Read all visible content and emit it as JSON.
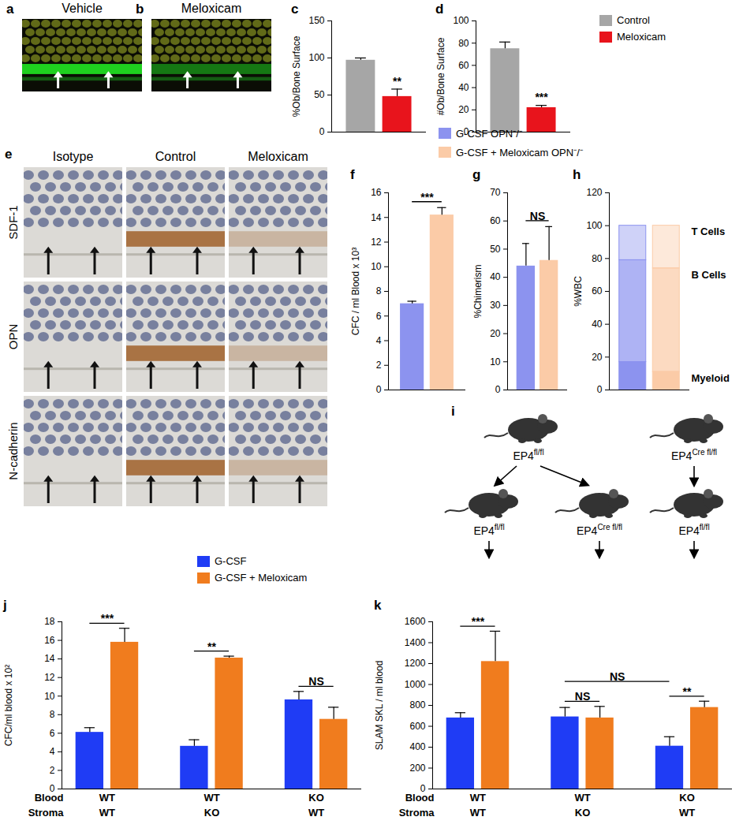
{
  "chart_data": [
    {
      "panel": "c",
      "type": "bar",
      "ylabel": "%Ob/Bone Surface",
      "categories": [
        null
      ],
      "ylim": [
        0,
        150
      ],
      "yticks": [
        0,
        50,
        100,
        150
      ],
      "tick_labels": "y",
      "series": [
        {
          "name": "Control",
          "color": "#a6a6a6",
          "values": [
            97
          ],
          "errors": [
            3
          ]
        },
        {
          "name": "Meloxicam",
          "color": "#e8141c",
          "values": [
            48
          ],
          "errors": [
            10
          ]
        }
      ],
      "annotations": [
        {
          "text": "**",
          "bars": [
            [
              0,
              1
            ]
          ]
        }
      ]
    },
    {
      "panel": "d",
      "type": "bar",
      "ylabel": "#Ob/Bone Surface",
      "categories": [
        null
      ],
      "ylim": [
        0,
        100
      ],
      "yticks": [
        0,
        20,
        40,
        60,
        80,
        100
      ],
      "tick_labels": "y",
      "legend": "right",
      "series": [
        {
          "name": "Control",
          "color": "#a6a6a6",
          "values": [
            75
          ],
          "errors": [
            6
          ]
        },
        {
          "name": "Meloxicam",
          "color": "#e8141c",
          "values": [
            22
          ],
          "errors": [
            2
          ]
        }
      ],
      "annotations": [
        {
          "text": "***",
          "bars": [
            [
              0,
              1
            ]
          ]
        }
      ]
    },
    {
      "panel": "f",
      "type": "bar",
      "ylabel": "CFC / ml Blood x 10³",
      "categories": [
        null
      ],
      "ylim": [
        0,
        16
      ],
      "yticks": [
        0,
        2,
        4,
        6,
        8,
        10,
        12,
        14,
        16
      ],
      "tick_labels": "y",
      "legend": "top",
      "series": [
        {
          "name": "G-CSF OPN⁻/⁻",
          "color": "#8c93ef",
          "values": [
            7.0
          ],
          "errors": [
            0.2
          ]
        },
        {
          "name": "G-CSF + Meloxicam OPN⁻/⁻",
          "color": "#fbcba7",
          "values": [
            14.2
          ],
          "errors": [
            0.6
          ]
        }
      ],
      "annotations": [
        {
          "text": "***",
          "bars": [
            [
              0,
              0
            ],
            [
              0,
              1
            ]
          ]
        }
      ]
    },
    {
      "panel": "g",
      "type": "bar",
      "ylabel": "%Chimerism",
      "categories": [
        null
      ],
      "ylim": [
        0,
        70
      ],
      "yticks": [
        0,
        10,
        20,
        30,
        40,
        50,
        60,
        70
      ],
      "tick_labels": "y",
      "series": [
        {
          "name": "G-CSF OPN⁻/⁻",
          "color": "#8c93ef",
          "values": [
            44
          ],
          "errors": [
            8
          ]
        },
        {
          "name": "G-CSF + Meloxicam OPN⁻/⁻",
          "color": "#fbcba7",
          "values": [
            46
          ],
          "errors": [
            12
          ]
        }
      ],
      "annotations": [
        {
          "text": "NS",
          "bars": [
            [
              0,
              0
            ],
            [
              0,
              1
            ]
          ]
        }
      ]
    },
    {
      "panel": "h",
      "type": "bar",
      "stacked": true,
      "ylabel": "%WBC",
      "categories": [
        null,
        null
      ],
      "colors": [
        "#8c93ef",
        "#fbcba7"
      ],
      "ylim": [
        0,
        120
      ],
      "yticks": [
        0,
        20,
        40,
        60,
        80,
        100,
        120
      ],
      "tick_labels": "y",
      "series": [
        {
          "name": "Myeloid",
          "values": [
            17,
            11
          ]
        },
        {
          "name": "B Cells",
          "values": [
            62,
            63
          ]
        },
        {
          "name": "T Cells",
          "values": [
            21,
            26
          ]
        }
      ]
    },
    {
      "panel": "j",
      "type": "bar",
      "ylabel": "CFC/ml blood x 10²",
      "categories": [
        null,
        null,
        null
      ],
      "ylim": [
        0,
        18
      ],
      "yticks": [
        0,
        2,
        4,
        6,
        8,
        10,
        12,
        14,
        16,
        18
      ],
      "tick_labels": "y",
      "legend": "top",
      "x_rows": [
        {
          "label": "Blood",
          "values": [
            "WT",
            "WT",
            "KO"
          ]
        },
        {
          "label": "Stroma",
          "values": [
            "WT",
            "KO",
            "WT"
          ]
        }
      ],
      "series": [
        {
          "name": "G-CSF",
          "color": "#1f3cf5",
          "values": [
            6.1,
            4.6,
            9.6
          ],
          "errors": [
            0.5,
            0.7,
            0.9
          ]
        },
        {
          "name": "G-CSF + Meloxicam",
          "color": "#f07c1e",
          "values": [
            15.8,
            14.1,
            7.5
          ],
          "errors": [
            1.5,
            0.2,
            1.3
          ]
        }
      ],
      "annotations": [
        {
          "text": "***",
          "bars": [
            [
              0,
              0
            ],
            [
              0,
              1
            ]
          ]
        },
        {
          "text": "**",
          "bars": [
            [
              1,
              0
            ],
            [
              1,
              1
            ]
          ]
        },
        {
          "text": "NS",
          "bars": [
            [
              2,
              0
            ],
            [
              2,
              1
            ]
          ]
        }
      ]
    },
    {
      "panel": "k",
      "type": "bar",
      "ylabel": "SLAM SKL / ml blood",
      "categories": [
        null,
        null,
        null
      ],
      "ylim": [
        0,
        1600
      ],
      "yticks": [
        0,
        200,
        400,
        600,
        800,
        1000,
        1200,
        1400,
        1600
      ],
      "tick_labels": "y",
      "x_rows": [
        {
          "label": "Blood",
          "values": [
            "WT",
            "WT",
            "KO"
          ]
        },
        {
          "label": "Stroma",
          "values": [
            "WT",
            "KO",
            "WT"
          ]
        }
      ],
      "series": [
        {
          "name": "G-CSF",
          "color": "#1f3cf5",
          "values": [
            680,
            690,
            410
          ],
          "errors": [
            50,
            90,
            90
          ]
        },
        {
          "name": "G-CSF + Meloxicam",
          "color": "#f07c1e",
          "values": [
            1220,
            680,
            780
          ],
          "errors": [
            290,
            110,
            60
          ]
        }
      ],
      "annotations": [
        {
          "text": "***",
          "bars": [
            [
              0,
              0
            ],
            [
              0,
              1
            ]
          ]
        },
        {
          "text": "NS",
          "bars": [
            [
              1,
              0
            ],
            [
              1,
              1
            ]
          ]
        },
        {
          "text": "**",
          "bars": [
            [
              2,
              0
            ],
            [
              2,
              1
            ]
          ]
        },
        {
          "text": "NS",
          "bars": [
            [
              1,
              0
            ],
            [
              2,
              0
            ]
          ]
        }
      ]
    }
  ],
  "micrographs": {
    "a": {
      "panel": "a",
      "title": "Vehicle"
    },
    "b": {
      "panel": "b",
      "title": "Meloxicam"
    },
    "e": {
      "panel": "e",
      "columns": [
        "Isotype",
        "Control",
        "Meloxicam"
      ],
      "rows": [
        "SDF-1",
        "OPN",
        "N-cadherin"
      ]
    }
  },
  "diagram": {
    "panel": "i",
    "top": [
      {
        "base": "EP4",
        "sup": "fl/fl"
      },
      {
        "base": "EP4",
        "sup": "Cre fl/fl"
      }
    ],
    "bottom": [
      {
        "base": "EP4",
        "sup": "fl/fl"
      },
      {
        "base": "EP4",
        "sup": "Cre fl/fl"
      },
      {
        "base": "EP4",
        "sup": "fl/fl"
      }
    ]
  }
}
